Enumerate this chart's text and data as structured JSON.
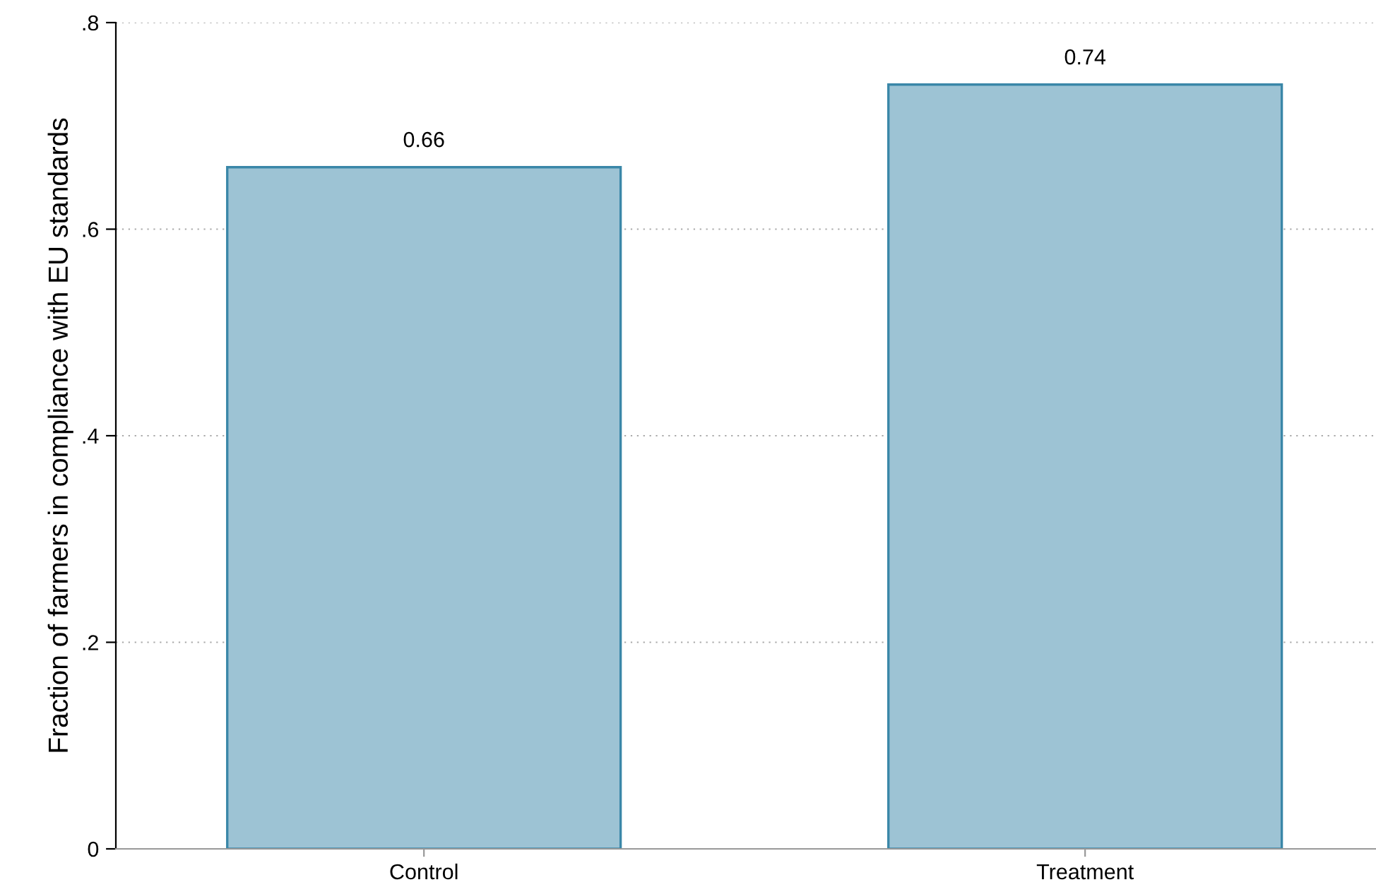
{
  "chart_data": {
    "type": "bar",
    "ylabel": "Fraction of farmers in compliance with EU standards",
    "categories": [
      "Control",
      "Treatment"
    ],
    "values": [
      0.66,
      0.74
    ],
    "color": "#9dc3d4",
    "data_labels": true,
    "ylim": [
      0,
      0.8
    ],
    "yticks": [
      {
        "value": 0,
        "label": "0"
      },
      {
        "value": 0.2,
        "label": ".2"
      },
      {
        "value": 0.4,
        "label": ".4"
      },
      {
        "value": 0.6,
        "label": ".6"
      },
      {
        "value": 0.8,
        "label": ".8"
      }
    ],
    "grid": "y"
  }
}
